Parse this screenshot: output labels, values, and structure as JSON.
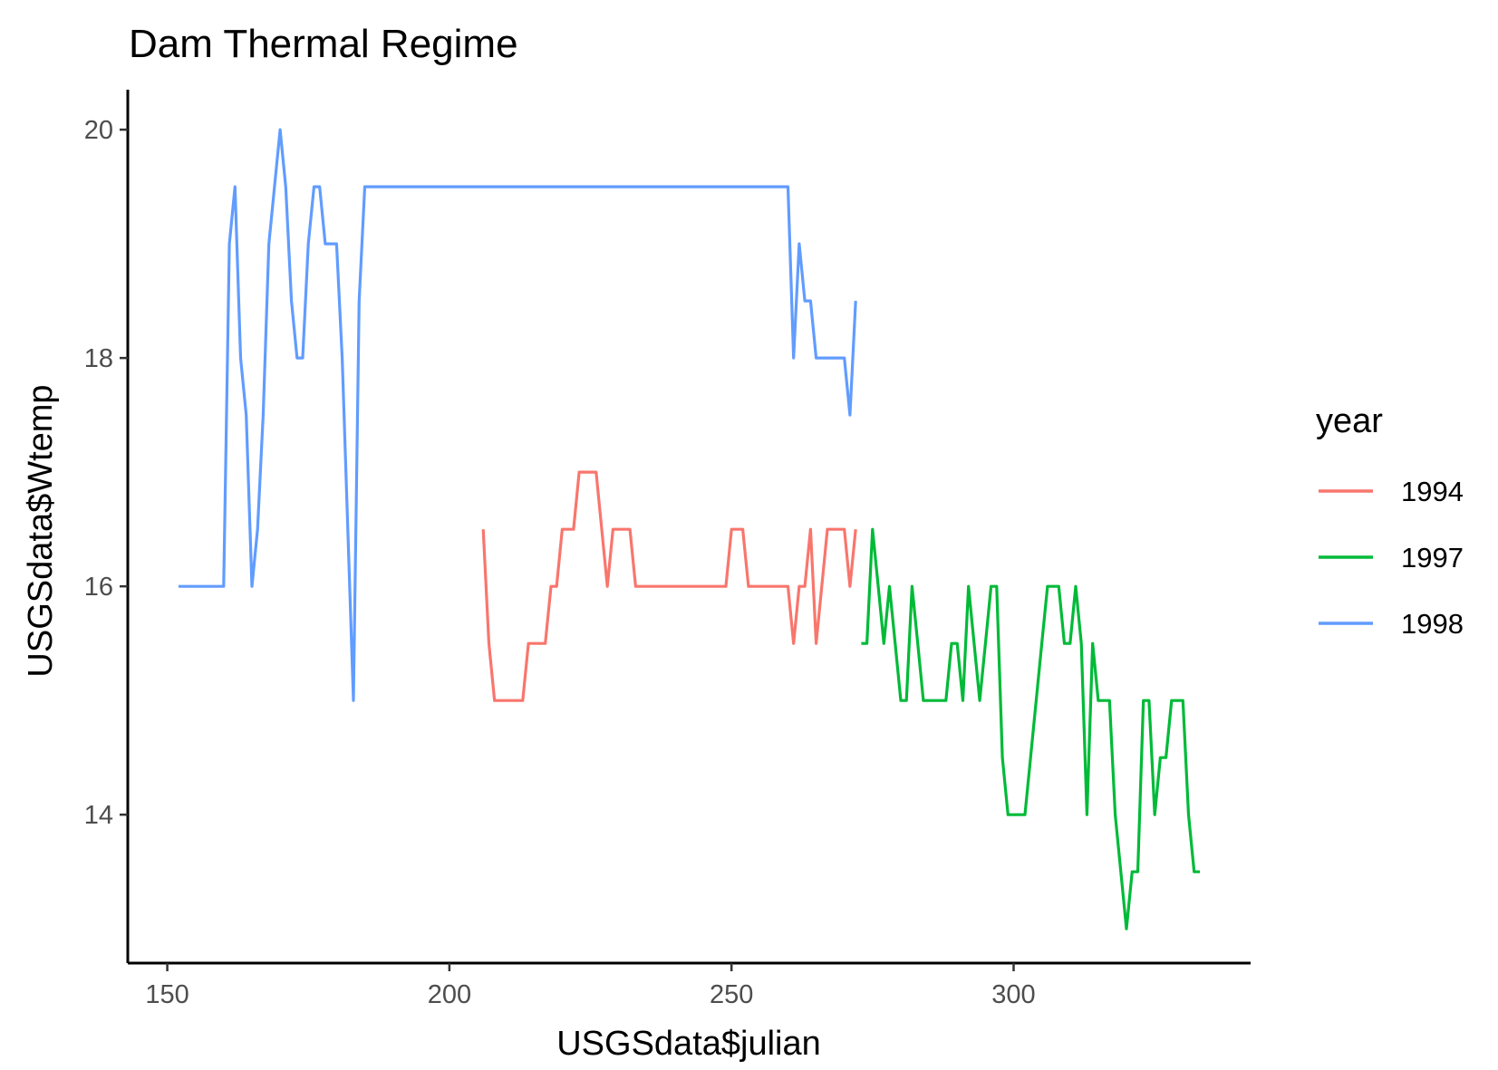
{
  "chart_data": {
    "type": "line",
    "title": "Dam Thermal Regime",
    "xlabel": "USGSdata$julian",
    "ylabel": "USGSdata$Wtemp",
    "xlim": [
      143,
      342
    ],
    "ylim": [
      12.7,
      20.35
    ],
    "xticks": [
      150,
      200,
      250,
      300
    ],
    "yticks": [
      14,
      16,
      18,
      20
    ],
    "grid": false,
    "legend": {
      "title": "year",
      "position": "right"
    },
    "series": [
      {
        "name": "1994",
        "color": "#F8766D",
        "x": [
          206,
          207,
          208,
          209,
          210,
          211,
          212,
          213,
          214,
          215,
          216,
          217,
          218,
          219,
          220,
          221,
          222,
          223,
          224,
          225,
          226,
          227,
          228,
          229,
          230,
          231,
          232,
          233,
          234,
          235,
          236,
          237,
          238,
          239,
          240,
          241,
          242,
          243,
          244,
          245,
          246,
          247,
          248,
          249,
          250,
          251,
          252,
          253,
          254,
          255,
          256,
          257,
          258,
          259,
          260,
          261,
          262,
          263,
          264,
          265,
          266,
          267,
          268,
          269,
          270,
          271,
          272
        ],
        "y": [
          16.5,
          15.5,
          15.0,
          15.0,
          15.0,
          15.0,
          15.0,
          15.0,
          15.5,
          15.5,
          15.5,
          15.5,
          16.0,
          16.0,
          16.5,
          16.5,
          16.5,
          17.0,
          17.0,
          17.0,
          17.0,
          16.5,
          16.0,
          16.5,
          16.5,
          16.5,
          16.5,
          16.0,
          16.0,
          16.0,
          16.0,
          16.0,
          16.0,
          16.0,
          16.0,
          16.0,
          16.0,
          16.0,
          16.0,
          16.0,
          16.0,
          16.0,
          16.0,
          16.0,
          16.5,
          16.5,
          16.5,
          16.0,
          16.0,
          16.0,
          16.0,
          16.0,
          16.0,
          16.0,
          16.0,
          15.5,
          16.0,
          16.0,
          16.5,
          15.5,
          16.0,
          16.5,
          16.5,
          16.5,
          16.5,
          16.0,
          16.5
        ]
      },
      {
        "name": "1997",
        "color": "#00BA38",
        "x": [
          273,
          274,
          275,
          276,
          277,
          278,
          279,
          280,
          281,
          282,
          283,
          284,
          285,
          286,
          287,
          288,
          289,
          290,
          291,
          292,
          293,
          294,
          295,
          296,
          297,
          298,
          299,
          300,
          301,
          302,
          303,
          304,
          305,
          306,
          307,
          308,
          309,
          310,
          311,
          312,
          313,
          314,
          315,
          316,
          317,
          318,
          319,
          320,
          321,
          322,
          323,
          324,
          325,
          326,
          327,
          328,
          329,
          330,
          331,
          332,
          333
        ],
        "y": [
          15.5,
          15.5,
          16.5,
          16.0,
          15.5,
          16.0,
          15.5,
          15.0,
          15.0,
          16.0,
          15.5,
          15.0,
          15.0,
          15.0,
          15.0,
          15.0,
          15.5,
          15.5,
          15.0,
          16.0,
          15.5,
          15.0,
          15.5,
          16.0,
          16.0,
          14.5,
          14.0,
          14.0,
          14.0,
          14.0,
          14.5,
          15.0,
          15.5,
          16.0,
          16.0,
          16.0,
          15.5,
          15.5,
          16.0,
          15.5,
          14.0,
          15.5,
          15.0,
          15.0,
          15.0,
          14.0,
          13.5,
          13.0,
          13.5,
          13.5,
          15.0,
          15.0,
          14.0,
          14.5,
          14.5,
          15.0,
          15.0,
          15.0,
          14.0,
          13.5,
          13.5
        ]
      },
      {
        "name": "1998",
        "color": "#619CFF",
        "x": [
          152,
          153,
          154,
          155,
          156,
          157,
          158,
          159,
          160,
          161,
          162,
          163,
          164,
          165,
          166,
          167,
          168,
          169,
          170,
          171,
          172,
          173,
          174,
          175,
          176,
          177,
          178,
          179,
          180,
          181,
          182,
          183,
          184,
          185,
          186,
          200,
          220,
          240,
          259,
          260,
          261,
          262,
          263,
          264,
          265,
          266,
          267,
          268,
          269,
          270,
          271,
          272
        ],
        "y": [
          16.0,
          16.0,
          16.0,
          16.0,
          16.0,
          16.0,
          16.0,
          16.0,
          16.0,
          19.0,
          19.5,
          18.0,
          17.5,
          16.0,
          16.5,
          17.5,
          19.0,
          19.5,
          20.0,
          19.5,
          18.5,
          18.0,
          18.0,
          19.0,
          19.5,
          19.5,
          19.0,
          19.0,
          19.0,
          18.0,
          16.5,
          15.0,
          18.5,
          19.5,
          19.5,
          19.5,
          19.5,
          19.5,
          19.5,
          19.5,
          18.0,
          19.0,
          18.5,
          18.5,
          18.0,
          18.0,
          18.0,
          18.0,
          18.0,
          18.0,
          17.5,
          18.5
        ]
      }
    ]
  }
}
